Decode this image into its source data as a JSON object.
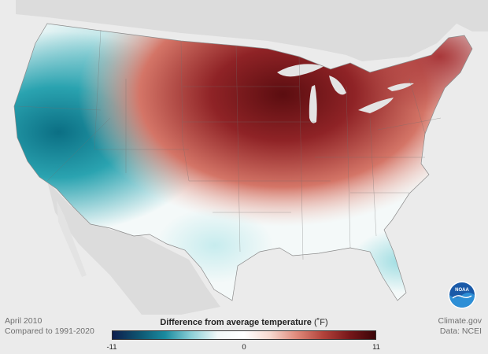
{
  "map": {
    "period": "April 2010",
    "baseline": "Compared to 1991-2020",
    "legend": {
      "title": "Difference from average temperature",
      "unit": "(˚F)",
      "min_label": "-11",
      "mid_label": "0",
      "max_label": "11",
      "colors": [
        "#0d1e4d",
        "#0e5470",
        "#1a8b9f",
        "#8ccfd7",
        "#f2f8f8",
        "#ffffff",
        "#f6d8cf",
        "#df8a7b",
        "#b3433b",
        "#78171a",
        "#3a0508"
      ]
    },
    "credits": {
      "source": "Climate.gov",
      "data": "Data: NCEI"
    },
    "logo": {
      "text": "NOAA",
      "icon": "noaa-emblem-icon"
    }
  }
}
